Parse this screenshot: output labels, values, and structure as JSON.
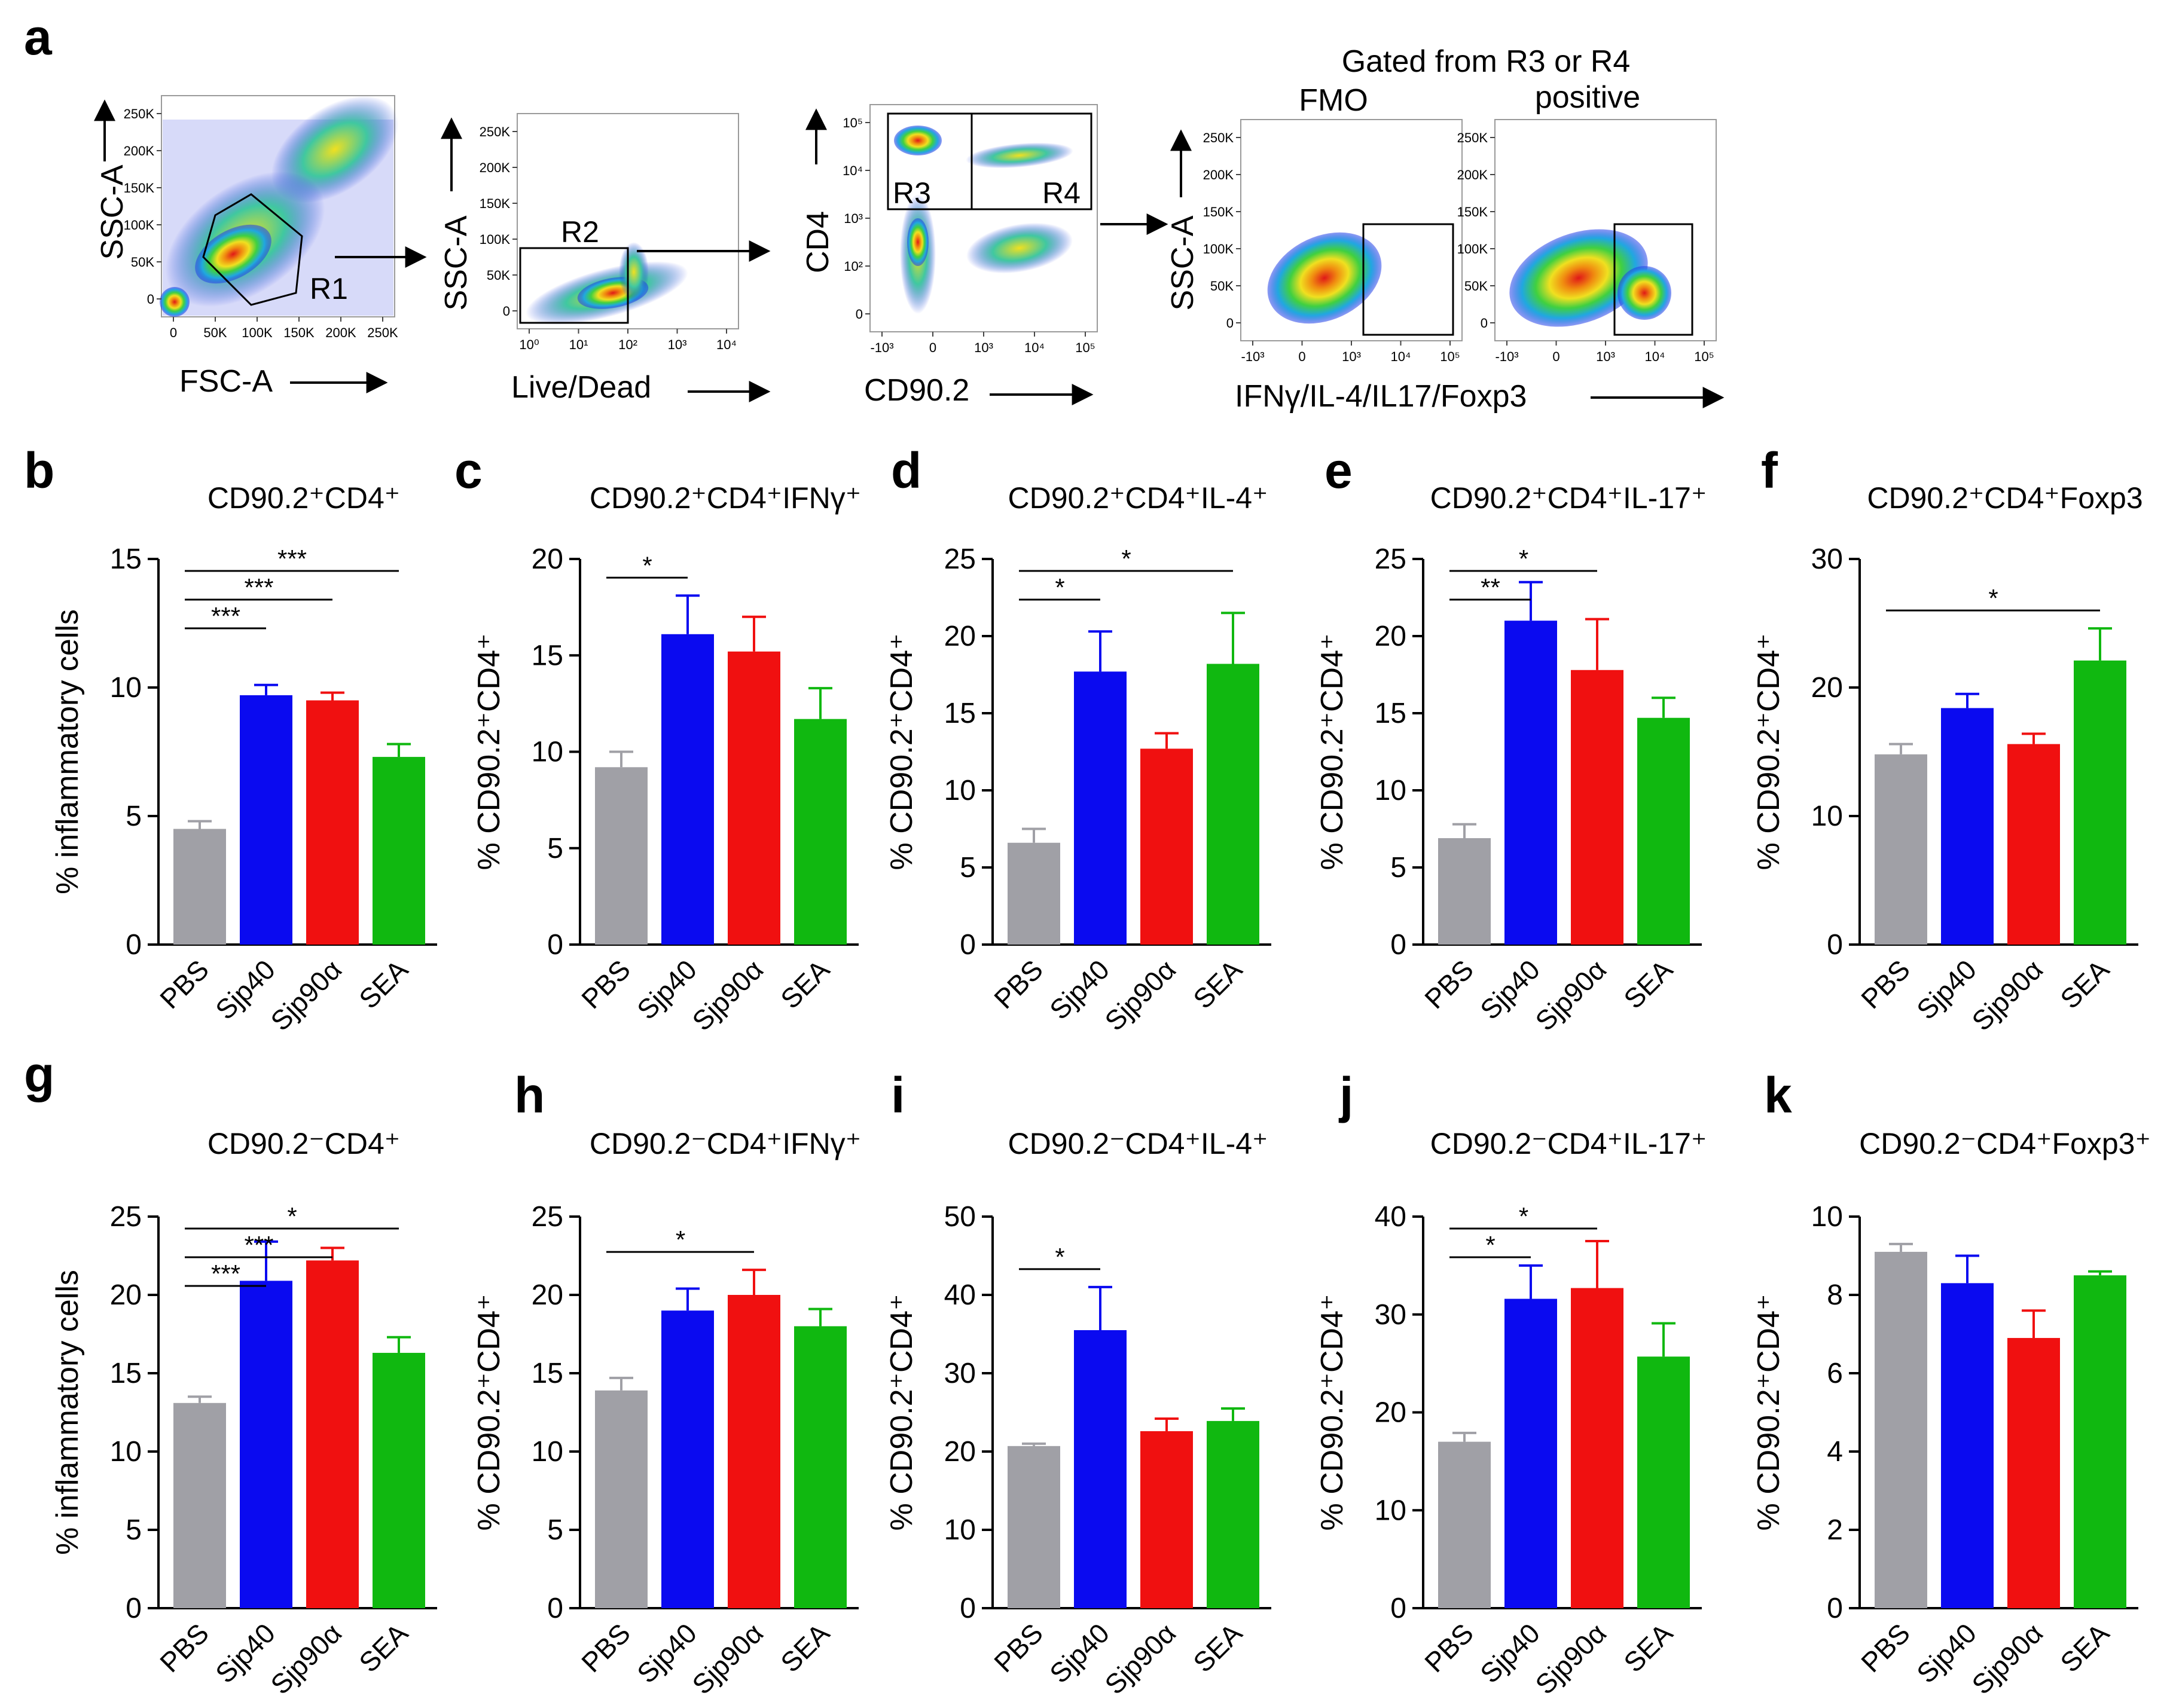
{
  "figure": {
    "panel_labels": [
      "a",
      "b",
      "c",
      "d",
      "e",
      "f",
      "g",
      "h",
      "i",
      "j",
      "k"
    ]
  },
  "gating": {
    "header": "Gated from R3 or R4",
    "fmo_label": "FMO",
    "positive_label": "positive",
    "plot1": {
      "x_label": "FSC-A",
      "y_label": "SSC-A",
      "gate": "R1",
      "x_ticks": [
        "0",
        "50K",
        "100K",
        "150K",
        "200K",
        "250K"
      ],
      "y_ticks": [
        "0",
        "50K",
        "100K",
        "150K",
        "200K",
        "250K"
      ]
    },
    "plot2": {
      "x_label": "Live/Dead",
      "y_label": "SSC-A",
      "gate": "R2",
      "x_ticks": [
        "10⁰",
        "10¹",
        "10²",
        "10³",
        "10⁴"
      ],
      "y_ticks": [
        "0",
        "50K",
        "100K",
        "150K",
        "200K",
        "250K"
      ]
    },
    "plot3": {
      "x_label": "CD90.2",
      "y_label": "CD4",
      "gate_left": "R3",
      "gate_right": "R4",
      "x_ticks": [
        "-10³",
        "0",
        "10³",
        "10⁴",
        "10⁵"
      ],
      "y_ticks": [
        "0",
        "10²",
        "10³",
        "10⁴",
        "10⁵"
      ]
    },
    "plot45": {
      "x_label": "IFNγ/IL-4/IL17/Foxp3",
      "y_label": "SSC-A",
      "x_ticks": [
        "-10³",
        "0",
        "10³",
        "10⁴",
        "10⁵"
      ],
      "y_ticks": [
        "0",
        "50K",
        "100K",
        "150K",
        "200K",
        "250K"
      ]
    }
  },
  "colors": {
    "PBS": "#a0a0a6",
    "Sjp40": "#0a0af0",
    "Sjp90a": "#f01010",
    "SEA": "#10b810"
  },
  "chart_data": [
    {
      "id": "b",
      "type": "bar",
      "title": "CD90.2⁺CD4⁺",
      "ylabel": "% inflammatory cells",
      "categories": [
        "PBS",
        "Sjp40",
        "Sjp90α",
        "SEA"
      ],
      "values": [
        4.5,
        9.7,
        9.5,
        7.3
      ],
      "errors": [
        0.3,
        0.4,
        0.3,
        0.5
      ],
      "ylim": [
        0,
        15
      ],
      "yticks": [
        0,
        5,
        10,
        15
      ],
      "significance": [
        {
          "from": 0,
          "to": 1,
          "label": "***"
        },
        {
          "from": 0,
          "to": 2,
          "label": "***"
        },
        {
          "from": 0,
          "to": 3,
          "label": "***"
        }
      ]
    },
    {
      "id": "c",
      "type": "bar",
      "title": "CD90.2⁺CD4⁺IFNγ⁺",
      "ylabel": "% CD90.2⁺CD4⁺",
      "categories": [
        "PBS",
        "Sjp40",
        "Sjp90α",
        "SEA"
      ],
      "values": [
        9.2,
        16.1,
        15.2,
        11.7
      ],
      "errors": [
        0.8,
        2.0,
        1.8,
        1.6
      ],
      "ylim": [
        0,
        20
      ],
      "yticks": [
        0,
        5,
        10,
        15,
        20
      ],
      "significance": [
        {
          "from": 0,
          "to": 1,
          "label": "*"
        }
      ]
    },
    {
      "id": "d",
      "type": "bar",
      "title": "CD90.2⁺CD4⁺IL-4⁺",
      "ylabel": "% CD90.2⁺CD4⁺",
      "categories": [
        "PBS",
        "Sjp40",
        "Sjp90α",
        "SEA"
      ],
      "values": [
        6.6,
        17.7,
        12.7,
        18.2
      ],
      "errors": [
        0.9,
        2.6,
        1.0,
        3.3
      ],
      "ylim": [
        0,
        25
      ],
      "yticks": [
        0,
        5,
        10,
        15,
        20,
        25
      ],
      "significance": [
        {
          "from": 0,
          "to": 1,
          "label": "*"
        },
        {
          "from": 0,
          "to": 3,
          "label": "*"
        }
      ]
    },
    {
      "id": "e",
      "type": "bar",
      "title": "CD90.2⁺CD4⁺IL-17⁺",
      "ylabel": "% CD90.2⁺CD4⁺",
      "categories": [
        "PBS",
        "Sjp40",
        "Sjp90α",
        "SEA"
      ],
      "values": [
        6.9,
        21.0,
        17.8,
        14.7
      ],
      "errors": [
        0.9,
        2.5,
        3.3,
        1.3
      ],
      "ylim": [
        0,
        25
      ],
      "yticks": [
        0,
        5,
        10,
        15,
        20,
        25
      ],
      "significance": [
        {
          "from": 0,
          "to": 1,
          "label": "**"
        },
        {
          "from": 0,
          "to": 2,
          "label": "*"
        }
      ]
    },
    {
      "id": "f",
      "type": "bar",
      "title": "CD90.2⁺CD4⁺Foxp3",
      "ylabel": "% CD90.2⁺CD4⁺",
      "categories": [
        "PBS",
        "Sjp40",
        "Sjp90α",
        "SEA"
      ],
      "values": [
        14.8,
        18.4,
        15.6,
        22.1
      ],
      "errors": [
        0.8,
        1.1,
        0.8,
        2.5
      ],
      "ylim": [
        0,
        30
      ],
      "yticks": [
        0,
        10,
        20,
        30
      ],
      "significance": [
        {
          "from": 0,
          "to": 3,
          "label": "*"
        }
      ]
    },
    {
      "id": "g",
      "type": "bar",
      "title": "CD90.2⁻CD4⁺",
      "ylabel": "% inflammatory cells",
      "categories": [
        "PBS",
        "Sjp40",
        "Sjp90α",
        "SEA"
      ],
      "values": [
        13.1,
        20.9,
        22.2,
        16.3
      ],
      "errors": [
        0.4,
        2.5,
        0.8,
        1.0
      ],
      "ylim": [
        0,
        25
      ],
      "yticks": [
        0,
        5,
        10,
        15,
        20,
        25
      ],
      "significance": [
        {
          "from": 0,
          "to": 1,
          "label": "***"
        },
        {
          "from": 0,
          "to": 2,
          "label": "***"
        },
        {
          "from": 0,
          "to": 3,
          "label": "*"
        }
      ]
    },
    {
      "id": "h",
      "type": "bar",
      "title": "CD90.2⁻CD4⁺IFNγ⁺",
      "ylabel": "% CD90.2⁺CD4⁺",
      "categories": [
        "PBS",
        "Sjp40",
        "Sjp90α",
        "SEA"
      ],
      "values": [
        13.9,
        19.0,
        20.0,
        18.0
      ],
      "errors": [
        0.8,
        1.4,
        1.6,
        1.1
      ],
      "ylim": [
        0,
        25
      ],
      "yticks": [
        0,
        5,
        10,
        15,
        20,
        25
      ],
      "significance": [
        {
          "from": 0,
          "to": 2,
          "label": "*"
        }
      ]
    },
    {
      "id": "i",
      "type": "bar",
      "title": "CD90.2⁻CD4⁺IL-4⁺",
      "ylabel": "% CD90.2⁺CD4⁺",
      "categories": [
        "PBS",
        "Sjp40",
        "Sjp90α",
        "SEA"
      ],
      "values": [
        20.7,
        35.5,
        22.6,
        23.9
      ],
      "errors": [
        0.3,
        5.5,
        1.6,
        1.6
      ],
      "ylim": [
        0,
        50
      ],
      "yticks": [
        0,
        10,
        20,
        30,
        40,
        50
      ],
      "significance": [
        {
          "from": 0,
          "to": 1,
          "label": "*"
        }
      ]
    },
    {
      "id": "j",
      "type": "bar",
      "title": "CD90.2⁻CD4⁺IL-17⁺",
      "ylabel": "% CD90.2⁺CD4⁺",
      "categories": [
        "PBS",
        "Sjp40",
        "Sjp90α",
        "SEA"
      ],
      "values": [
        17.0,
        31.6,
        32.7,
        25.7
      ],
      "errors": [
        0.9,
        3.4,
        4.8,
        3.4
      ],
      "ylim": [
        0,
        40
      ],
      "yticks": [
        0,
        10,
        20,
        30,
        40
      ],
      "significance": [
        {
          "from": 0,
          "to": 1,
          "label": "*"
        },
        {
          "from": 0,
          "to": 2,
          "label": "*"
        }
      ]
    },
    {
      "id": "k",
      "type": "bar",
      "title": "CD90.2⁻CD4⁺Foxp3⁺",
      "ylabel": "% CD90.2⁺CD4⁺",
      "categories": [
        "PBS",
        "Sjp40",
        "Sjp90α",
        "SEA"
      ],
      "values": [
        9.1,
        8.3,
        6.9,
        8.5
      ],
      "errors": [
        0.2,
        0.7,
        0.7,
        0.1
      ],
      "ylim": [
        0,
        10
      ],
      "yticks": [
        0,
        2,
        4,
        6,
        8,
        10
      ],
      "significance": []
    }
  ]
}
